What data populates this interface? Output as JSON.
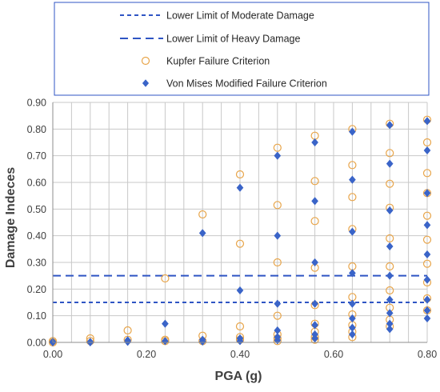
{
  "chart_data": {
    "type": "scatter",
    "xlabel": "PGA (g)",
    "ylabel": "Damage Indeces",
    "xlim": [
      0,
      0.8
    ],
    "ylim": [
      0,
      0.9
    ],
    "xticks": [
      0,
      0.2,
      0.4,
      0.6,
      0.8
    ],
    "xtick_labels": [
      "0.00",
      "0.20",
      "0.40",
      "0.60",
      "0.80"
    ],
    "yticks": [
      0,
      0.1,
      0.2,
      0.3,
      0.4,
      0.5,
      0.6,
      0.7,
      0.8,
      0.9
    ],
    "ytick_labels": [
      "0.00",
      "0.10",
      "0.20",
      "0.30",
      "0.40",
      "0.50",
      "0.60",
      "0.70",
      "0.80",
      "0.90"
    ],
    "minor_grid_x_step": 0.04,
    "grid": true,
    "legend_position": "top",
    "thresholds": [
      {
        "name": "Lower Limit of Moderate Damage",
        "value": 0.15,
        "color": "#2f55c4",
        "dash": "short"
      },
      {
        "name": "Lower Limit of Heavy Damage",
        "value": 0.25,
        "color": "#2f55c4",
        "dash": "long"
      }
    ],
    "series": [
      {
        "name": "Kupfer Failure Criterion",
        "marker": "circle",
        "color": "#e8a54a",
        "points": [
          [
            0,
            0
          ],
          [
            0,
            0.005
          ],
          [
            0.08,
            0.015
          ],
          [
            0.08,
            0.005
          ],
          [
            0.16,
            0.045
          ],
          [
            0.16,
            0.01
          ],
          [
            0.24,
            0.24
          ],
          [
            0.24,
            0.01
          ],
          [
            0.24,
            0.005
          ],
          [
            0.32,
            0.48
          ],
          [
            0.32,
            0.025
          ],
          [
            0.32,
            0.005
          ],
          [
            0.4,
            0.63
          ],
          [
            0.4,
            0.37
          ],
          [
            0.4,
            0.06
          ],
          [
            0.4,
            0.02
          ],
          [
            0.4,
            0.01
          ],
          [
            0.48,
            0.73
          ],
          [
            0.48,
            0.515
          ],
          [
            0.48,
            0.3
          ],
          [
            0.48,
            0.1
          ],
          [
            0.48,
            0.03
          ],
          [
            0.48,
            0.015
          ],
          [
            0.48,
            0.005
          ],
          [
            0.56,
            0.775
          ],
          [
            0.56,
            0.605
          ],
          [
            0.56,
            0.455
          ],
          [
            0.56,
            0.28
          ],
          [
            0.56,
            0.14
          ],
          [
            0.56,
            0.07
          ],
          [
            0.56,
            0.04
          ],
          [
            0.56,
            0.02
          ],
          [
            0.56,
            0.01
          ],
          [
            0.64,
            0.8
          ],
          [
            0.64,
            0.665
          ],
          [
            0.64,
            0.545
          ],
          [
            0.64,
            0.425
          ],
          [
            0.64,
            0.285
          ],
          [
            0.64,
            0.17
          ],
          [
            0.64,
            0.105
          ],
          [
            0.64,
            0.065
          ],
          [
            0.64,
            0.04
          ],
          [
            0.64,
            0.02
          ],
          [
            0.72,
            0.82
          ],
          [
            0.72,
            0.71
          ],
          [
            0.72,
            0.595
          ],
          [
            0.72,
            0.505
          ],
          [
            0.72,
            0.39
          ],
          [
            0.72,
            0.285
          ],
          [
            0.72,
            0.195
          ],
          [
            0.72,
            0.13
          ],
          [
            0.72,
            0.085
          ],
          [
            0.72,
            0.06
          ],
          [
            0.8,
            0.835
          ],
          [
            0.8,
            0.75
          ],
          [
            0.8,
            0.635
          ],
          [
            0.8,
            0.56
          ],
          [
            0.8,
            0.475
          ],
          [
            0.8,
            0.385
          ],
          [
            0.8,
            0.295
          ],
          [
            0.8,
            0.225
          ],
          [
            0.8,
            0.165
          ],
          [
            0.8,
            0.12
          ]
        ]
      },
      {
        "name": "Von Mises Modified Failure Criterion",
        "marker": "diamond",
        "color": "#3a64c8",
        "points": [
          [
            0,
            0
          ],
          [
            0,
            0.003
          ],
          [
            0.08,
            0.002
          ],
          [
            0.08,
            0.0
          ],
          [
            0.16,
            0.008
          ],
          [
            0.16,
            0.002
          ],
          [
            0.24,
            0.07
          ],
          [
            0.24,
            0.005
          ],
          [
            0.32,
            0.41
          ],
          [
            0.32,
            0.01
          ],
          [
            0.32,
            0.003
          ],
          [
            0.4,
            0.58
          ],
          [
            0.4,
            0.195
          ],
          [
            0.4,
            0.015
          ],
          [
            0.4,
            0.005
          ],
          [
            0.48,
            0.7
          ],
          [
            0.48,
            0.4
          ],
          [
            0.48,
            0.145
          ],
          [
            0.48,
            0.045
          ],
          [
            0.48,
            0.02
          ],
          [
            0.48,
            0.008
          ],
          [
            0.56,
            0.75
          ],
          [
            0.56,
            0.53
          ],
          [
            0.56,
            0.3
          ],
          [
            0.56,
            0.145
          ],
          [
            0.56,
            0.065
          ],
          [
            0.56,
            0.03
          ],
          [
            0.56,
            0.015
          ],
          [
            0.64,
            0.79
          ],
          [
            0.64,
            0.61
          ],
          [
            0.64,
            0.415
          ],
          [
            0.64,
            0.26
          ],
          [
            0.64,
            0.145
          ],
          [
            0.64,
            0.09
          ],
          [
            0.64,
            0.055
          ],
          [
            0.64,
            0.03
          ],
          [
            0.72,
            0.815
          ],
          [
            0.72,
            0.67
          ],
          [
            0.72,
            0.495
          ],
          [
            0.72,
            0.36
          ],
          [
            0.72,
            0.25
          ],
          [
            0.72,
            0.16
          ],
          [
            0.72,
            0.11
          ],
          [
            0.72,
            0.07
          ],
          [
            0.72,
            0.05
          ],
          [
            0.8,
            0.83
          ],
          [
            0.8,
            0.72
          ],
          [
            0.8,
            0.56
          ],
          [
            0.8,
            0.44
          ],
          [
            0.8,
            0.33
          ],
          [
            0.8,
            0.235
          ],
          [
            0.8,
            0.16
          ],
          [
            0.8,
            0.12
          ],
          [
            0.8,
            0.09
          ]
        ]
      }
    ]
  }
}
